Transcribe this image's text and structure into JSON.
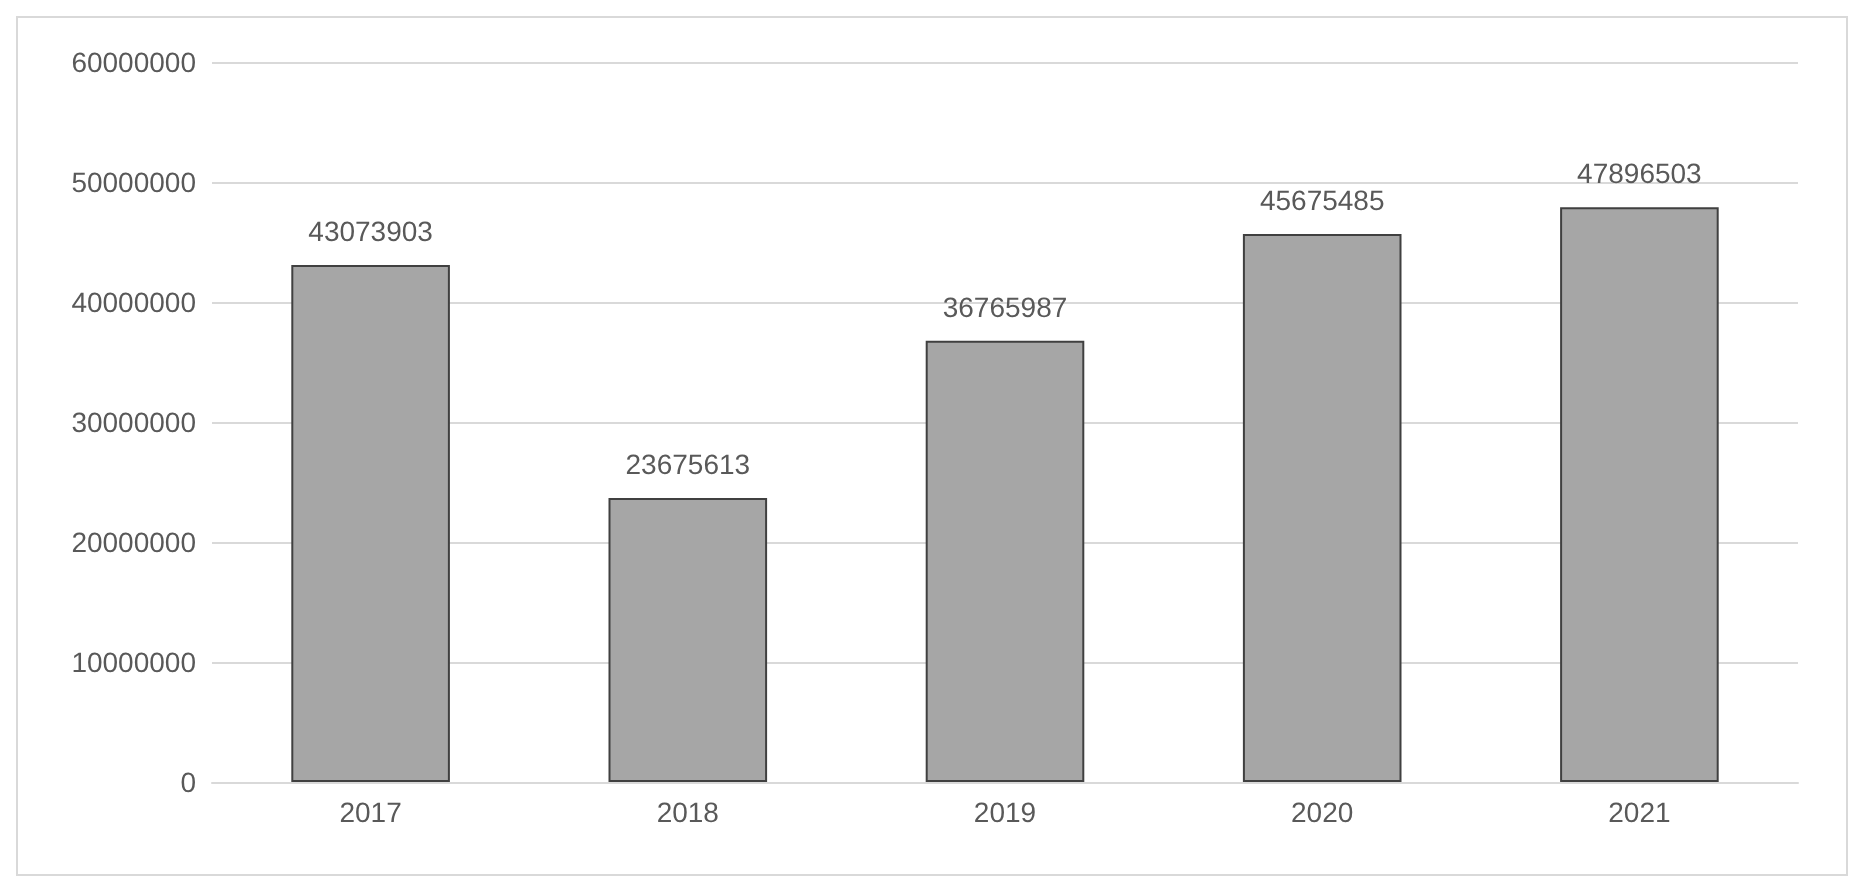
{
  "chart_data": {
    "type": "bar",
    "categories": [
      "2017",
      "2018",
      "2019",
      "2020",
      "2021"
    ],
    "values": [
      43073903,
      23675613,
      36765987,
      45675485,
      47896503
    ],
    "color": "#a6a6a6",
    "ylim": [
      0,
      60000000
    ],
    "yticks": [
      0,
      10000000,
      20000000,
      30000000,
      40000000,
      50000000,
      60000000
    ],
    "grid": "y",
    "data_labels": true
  }
}
